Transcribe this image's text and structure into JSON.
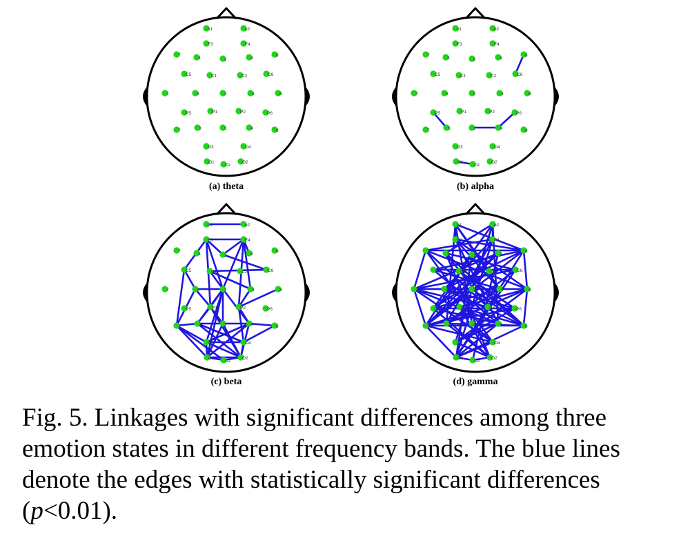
{
  "colors": {
    "electrode": "#22d41c",
    "edge": "#1f16e0",
    "head": "#000000",
    "background": "#ffffff"
  },
  "electrodes": [
    {
      "label": "Fp1",
      "short": "p1"
    },
    {
      "label": "Fp2",
      "short": "p2"
    },
    {
      "label": "F7",
      "short": "7"
    },
    {
      "label": "F3",
      "short": "3"
    },
    {
      "label": "Fz",
      "short": "z"
    },
    {
      "label": "F4",
      "short": "4"
    },
    {
      "label": "F8",
      "short": "8"
    },
    {
      "label": "AF3",
      "short": "F3"
    },
    {
      "label": "AF4",
      "short": "F4"
    },
    {
      "label": "FC5",
      "short": "C5"
    },
    {
      "label": "FC1",
      "short": "C1"
    },
    {
      "label": "FC2",
      "short": "C2"
    },
    {
      "label": "FC6",
      "short": "C6"
    },
    {
      "label": "T7",
      "short": "7"
    },
    {
      "label": "C3",
      "short": "3"
    },
    {
      "label": "Cz",
      "short": "z"
    },
    {
      "label": "C4",
      "short": "4"
    },
    {
      "label": "T8",
      "short": "8"
    },
    {
      "label": "CP5",
      "short": "P5"
    },
    {
      "label": "CP1",
      "short": "P1"
    },
    {
      "label": "CP2",
      "short": "P2"
    },
    {
      "label": "CP6",
      "short": "P6"
    },
    {
      "label": "P7",
      "short": "7"
    },
    {
      "label": "P3",
      "short": "3"
    },
    {
      "label": "Pz",
      "short": "z"
    },
    {
      "label": "P4",
      "short": "4"
    },
    {
      "label": "P8",
      "short": "8"
    },
    {
      "label": "PO3",
      "short": "O3"
    },
    {
      "label": "PO4",
      "short": "O4"
    },
    {
      "label": "O1",
      "short": "O1"
    },
    {
      "label": "Oz",
      "short": "Oz"
    },
    {
      "label": "O2",
      "short": "O2"
    }
  ],
  "panels": [
    {
      "id": "a",
      "label": "(a) theta",
      "edges": []
    },
    {
      "id": "b",
      "label": "(b) alpha",
      "edges": [
        [
          "F8",
          "FC6"
        ],
        [
          "CP5",
          "P3"
        ],
        [
          "Pz",
          "P4"
        ],
        [
          "P4",
          "CP6"
        ],
        [
          "O1",
          "Oz"
        ]
      ]
    },
    {
      "id": "c",
      "label": "(c) beta",
      "edges": [
        [
          "Fp1",
          "Fp2"
        ],
        [
          "AF3",
          "AF4"
        ],
        [
          "AF3",
          "FC5"
        ],
        [
          "AF3",
          "Fz"
        ],
        [
          "AF3",
          "Cz"
        ],
        [
          "AF3",
          "CP1"
        ],
        [
          "AF4",
          "Fz"
        ],
        [
          "AF4",
          "F4"
        ],
        [
          "AF4",
          "Cz"
        ],
        [
          "AF4",
          "CP2"
        ],
        [
          "AF4",
          "C4"
        ],
        [
          "FC5",
          "C3"
        ],
        [
          "FC5",
          "P7"
        ],
        [
          "Fz",
          "FC6"
        ],
        [
          "FC1",
          "FC6"
        ],
        [
          "FC1",
          "Cz"
        ],
        [
          "C3",
          "Cz"
        ],
        [
          "C3",
          "CP1"
        ],
        [
          "Cz",
          "CP1"
        ],
        [
          "Cz",
          "P3"
        ],
        [
          "Cz",
          "P4"
        ],
        [
          "Cz",
          "Pz"
        ],
        [
          "Cz",
          "PO3"
        ],
        [
          "Cz",
          "O1"
        ],
        [
          "C4",
          "CP2"
        ],
        [
          "T8",
          "CP2"
        ],
        [
          "CP1",
          "P3"
        ],
        [
          "CP1",
          "Pz"
        ],
        [
          "CP2",
          "P4"
        ],
        [
          "CP2",
          "PO4"
        ],
        [
          "P7",
          "P3"
        ],
        [
          "P7",
          "PO3"
        ],
        [
          "P7",
          "O1"
        ],
        [
          "P7",
          "Oz"
        ],
        [
          "P3",
          "Pz"
        ],
        [
          "P3",
          "PO4"
        ],
        [
          "P3",
          "O2"
        ],
        [
          "Pz",
          "P4"
        ],
        [
          "Pz",
          "O1"
        ],
        [
          "Pz",
          "O2"
        ],
        [
          "P4",
          "P8"
        ],
        [
          "P4",
          "PO3"
        ],
        [
          "P4",
          "O1"
        ],
        [
          "PO3",
          "O1"
        ],
        [
          "PO3",
          "O2"
        ],
        [
          "PO3",
          "PO4"
        ],
        [
          "PO4",
          "O2"
        ],
        [
          "O1",
          "Oz"
        ],
        [
          "Oz",
          "O2"
        ],
        [
          "O1",
          "O2"
        ],
        [
          "P8",
          "PO4"
        ],
        [
          "FC1",
          "C4"
        ],
        [
          "C3",
          "P7"
        ],
        [
          "CP1",
          "O2"
        ],
        [
          "P4",
          "O2"
        ]
      ]
    },
    {
      "id": "d",
      "label": "(d) gamma",
      "edges": [
        [
          "Fp1",
          "AF3"
        ],
        [
          "Fp1",
          "F8"
        ],
        [
          "Fp1",
          "FC2"
        ],
        [
          "Fp1",
          "C4"
        ],
        [
          "Fp1",
          "P3"
        ],
        [
          "Fp1",
          "Pz"
        ],
        [
          "Fp2",
          "AF4"
        ],
        [
          "Fp2",
          "F3"
        ],
        [
          "Fp2",
          "FC1"
        ],
        [
          "Fp2",
          "Cz"
        ],
        [
          "Fp2",
          "P4"
        ],
        [
          "Fp2",
          "PO3"
        ],
        [
          "AF3",
          "F8"
        ],
        [
          "AF3",
          "C4"
        ],
        [
          "AF3",
          "P4"
        ],
        [
          "AF3",
          "T8"
        ],
        [
          "AF4",
          "F7"
        ],
        [
          "AF4",
          "C3"
        ],
        [
          "AF4",
          "P3"
        ],
        [
          "AF4",
          "O1"
        ],
        [
          "F7",
          "F8"
        ],
        [
          "F7",
          "T8"
        ],
        [
          "F7",
          "CP2"
        ],
        [
          "F7",
          "PO4"
        ],
        [
          "F3",
          "FC6"
        ],
        [
          "F3",
          "CP2"
        ],
        [
          "F3",
          "P8"
        ],
        [
          "F3",
          "O2"
        ],
        [
          "Fz",
          "CP5"
        ],
        [
          "Fz",
          "P7"
        ],
        [
          "Fz",
          "O1"
        ],
        [
          "F4",
          "CP5"
        ],
        [
          "F4",
          "P7"
        ],
        [
          "F4",
          "T7"
        ],
        [
          "F4",
          "Oz"
        ],
        [
          "F8",
          "FC5"
        ],
        [
          "F8",
          "C3"
        ],
        [
          "F8",
          "P7"
        ],
        [
          "F8",
          "O1"
        ],
        [
          "FC5",
          "FC6"
        ],
        [
          "FC5",
          "C4"
        ],
        [
          "FC5",
          "P4"
        ],
        [
          "FC1",
          "CP6"
        ],
        [
          "FC1",
          "P8"
        ],
        [
          "FC2",
          "CP5"
        ],
        [
          "FC2",
          "P7"
        ],
        [
          "FC6",
          "T7"
        ],
        [
          "FC6",
          "P3"
        ],
        [
          "FC6",
          "O1"
        ],
        [
          "T7",
          "T8"
        ],
        [
          "T7",
          "CP2"
        ],
        [
          "T7",
          "P4"
        ],
        [
          "T7",
          "PO4"
        ],
        [
          "C3",
          "C4"
        ],
        [
          "C3",
          "CP6"
        ],
        [
          "C3",
          "P8"
        ],
        [
          "Cz",
          "P7"
        ],
        [
          "Cz",
          "P8"
        ],
        [
          "C4",
          "CP5"
        ],
        [
          "C4",
          "P3"
        ],
        [
          "T8",
          "CP1"
        ],
        [
          "T8",
          "P3"
        ],
        [
          "T8",
          "PO3"
        ],
        [
          "CP5",
          "CP6"
        ],
        [
          "CP5",
          "P4"
        ],
        [
          "CP5",
          "O2"
        ],
        [
          "CP1",
          "P8"
        ],
        [
          "CP1",
          "O2"
        ],
        [
          "CP2",
          "P7"
        ],
        [
          "CP2",
          "O1"
        ],
        [
          "CP6",
          "P7"
        ],
        [
          "CP6",
          "PO3"
        ],
        [
          "P7",
          "P8"
        ],
        [
          "P7",
          "PO4"
        ],
        [
          "P3",
          "P8"
        ],
        [
          "P3",
          "O2"
        ],
        [
          "Pz",
          "PO4"
        ],
        [
          "P4",
          "PO3"
        ],
        [
          "P4",
          "O1"
        ],
        [
          "P8",
          "O1"
        ],
        [
          "PO3",
          "O2"
        ],
        [
          "PO4",
          "O1"
        ],
        [
          "O1",
          "Oz"
        ],
        [
          "Oz",
          "O2"
        ],
        [
          "T7",
          "C3"
        ],
        [
          "T7",
          "P7"
        ],
        [
          "P7",
          "O1"
        ],
        [
          "T8",
          "P8"
        ],
        [
          "F7",
          "T7"
        ],
        [
          "F8",
          "T8"
        ]
      ]
    }
  ],
  "caption": {
    "line1": "Fig. 5. Linkages with significant differences among three",
    "line2": "emotion states in different frequency bands. The blue lines",
    "line3": "denote the edges with statistically significant differences",
    "line4_open": "(",
    "line4_p": "p",
    "line4_rest": "<0.01)."
  }
}
